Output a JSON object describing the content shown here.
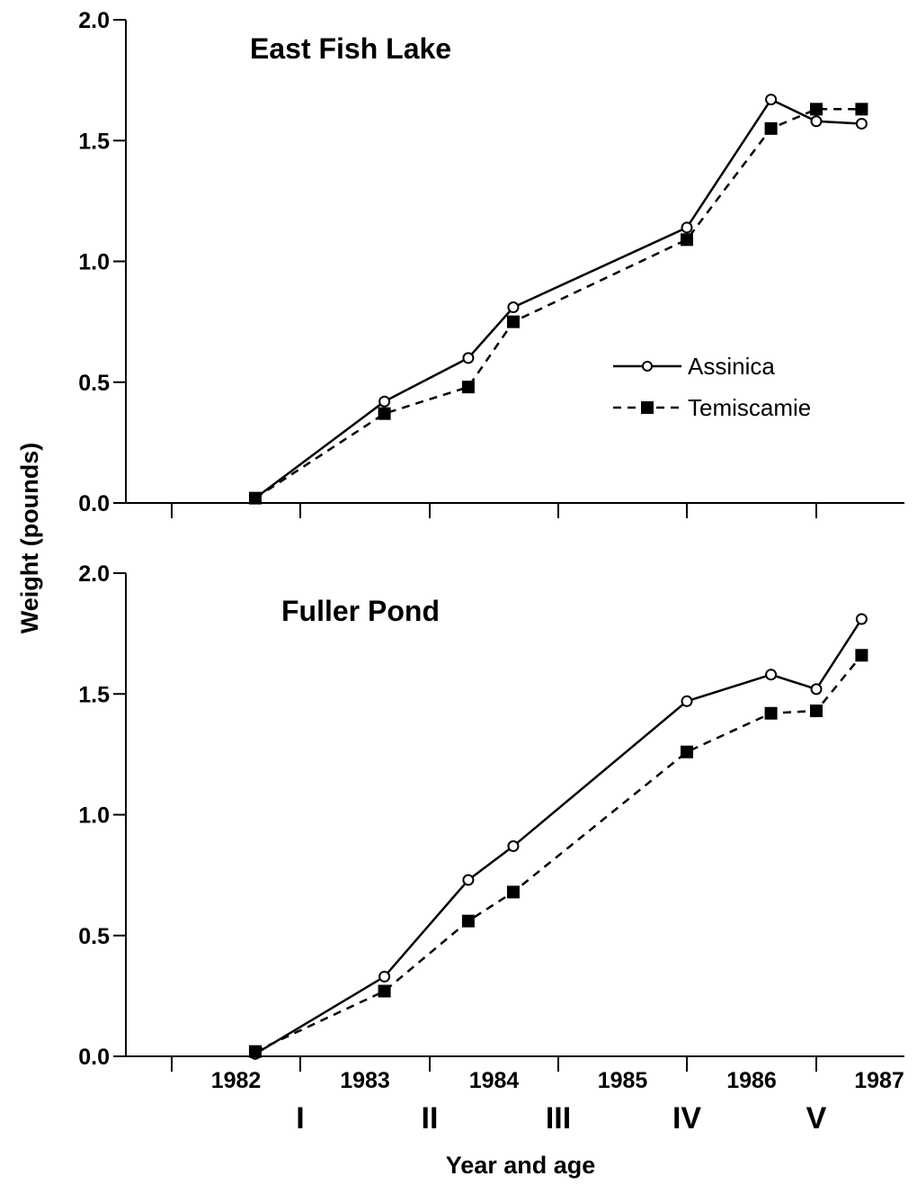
{
  "colors": {
    "ink": "#000000",
    "background": "#ffffff"
  },
  "chart_data": [
    {
      "type": "line",
      "title": "East Fish Lake",
      "ylabel": "Weight (pounds)",
      "xlabel": "Year and age",
      "ylim": [
        0,
        2.0
      ],
      "yticks": [
        "0.0",
        "0.5",
        "1.0",
        "1.5",
        "2.0"
      ],
      "grid": false,
      "legend": {
        "position": "right-middle",
        "entries": [
          "Assinica",
          "Temiscamie"
        ]
      },
      "series": [
        {
          "name": "Assinica",
          "marker": "open-circle",
          "line": "solid",
          "x": [
            1982.65,
            1983.65,
            1984.3,
            1984.65,
            1986.0,
            1986.65,
            1987.0,
            1987.35
          ],
          "y": [
            0.02,
            0.42,
            0.6,
            0.81,
            1.14,
            1.67,
            1.58,
            1.57
          ]
        },
        {
          "name": "Temiscamie",
          "marker": "filled-square",
          "line": "dashed",
          "x": [
            1982.65,
            1983.65,
            1984.3,
            1984.65,
            1986.0,
            1986.65,
            1987.0,
            1987.35
          ],
          "y": [
            0.02,
            0.37,
            0.48,
            0.75,
            1.09,
            1.55,
            1.63,
            1.63
          ]
        }
      ]
    },
    {
      "type": "line",
      "title": "Fuller Pond",
      "ylabel": "Weight (pounds)",
      "xlabel": "Year and age",
      "ylim": [
        0,
        2.0
      ],
      "yticks": [
        "0.0",
        "0.5",
        "1.0",
        "1.5",
        "2.0"
      ],
      "grid": false,
      "xticklabels": [
        "1982",
        "1983",
        "1984",
        "1985",
        "1986",
        "1987"
      ],
      "age_labels": [
        "I",
        "II",
        "III",
        "IV",
        "V"
      ],
      "series": [
        {
          "name": "Assinica",
          "marker": "open-circle",
          "line": "solid",
          "x": [
            1982.65,
            1983.65,
            1984.3,
            1984.65,
            1986.0,
            1986.65,
            1987.0,
            1987.35
          ],
          "y": [
            0.01,
            0.33,
            0.73,
            0.87,
            1.47,
            1.58,
            1.52,
            1.81
          ]
        },
        {
          "name": "Temiscamie",
          "marker": "filled-square",
          "line": "dashed",
          "x": [
            1982.65,
            1983.65,
            1984.3,
            1984.65,
            1986.0,
            1986.65,
            1987.0,
            1987.35
          ],
          "y": [
            0.02,
            0.27,
            0.56,
            0.68,
            1.26,
            1.42,
            1.43,
            1.66
          ]
        }
      ]
    }
  ]
}
